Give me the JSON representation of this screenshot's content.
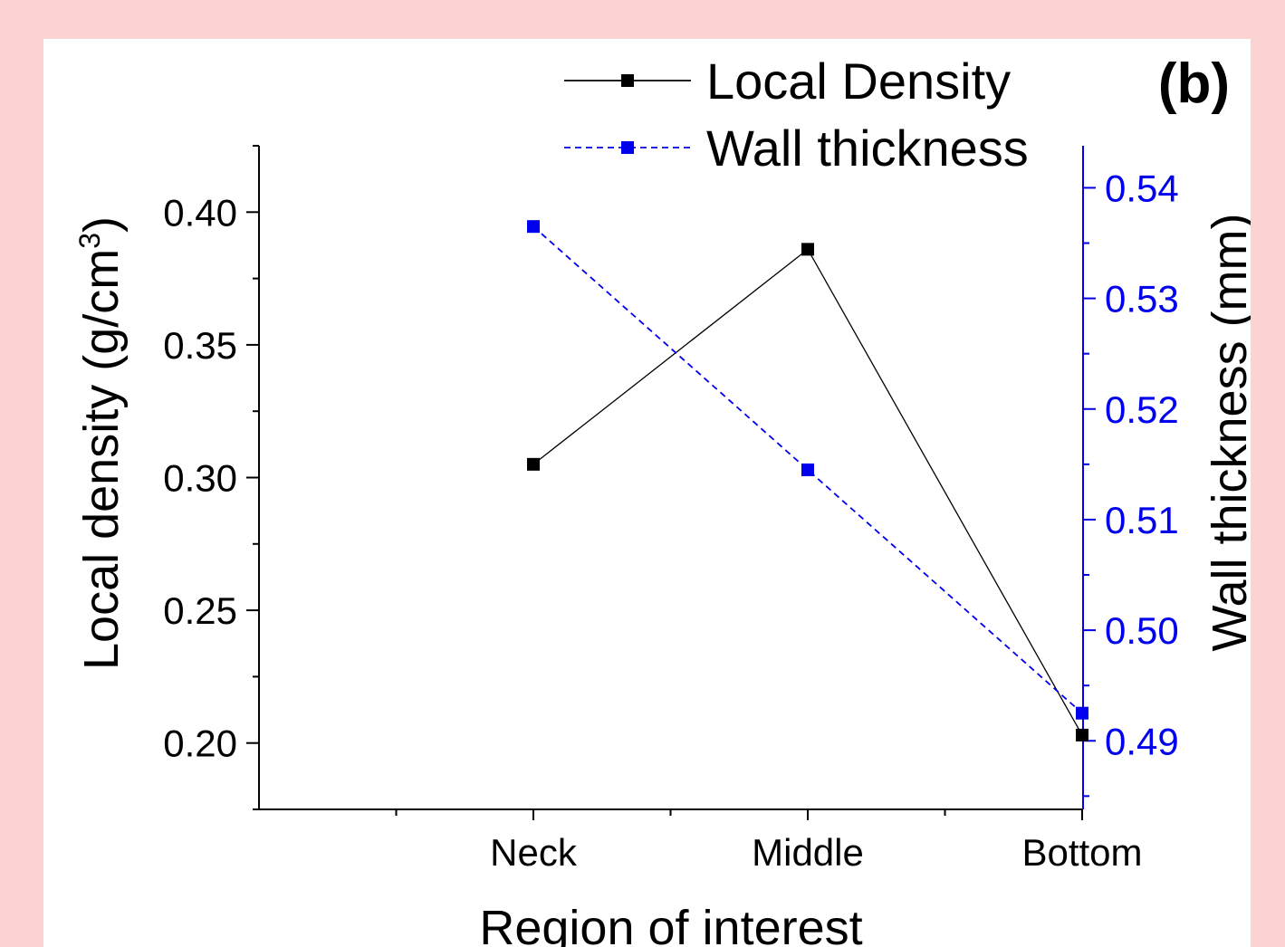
{
  "chart_data": {
    "type": "line",
    "panel_label": "(b)",
    "categories": [
      "Neck",
      "Middle",
      "Bottom"
    ],
    "xlabel": "Region of interest",
    "ylabel": "Local density (g/cm",
    "ylabel_sup": "3",
    "ylabel_close": ")",
    "y2label": "Wall thickness (mm)",
    "ylim": [
      0.175,
      0.425
    ],
    "y2lim": [
      0.4838,
      0.5438
    ],
    "yticks": [
      "0.20",
      "0.25",
      "0.30",
      "0.35",
      "0.40"
    ],
    "y2ticks": [
      "0.49",
      "0.50",
      "0.51",
      "0.52",
      "0.53",
      "0.54"
    ],
    "grid": false,
    "legend_position": "top",
    "series": [
      {
        "name": "Local Density",
        "axis": "left",
        "values": [
          0.305,
          0.386,
          0.203
        ],
        "color": "#000000",
        "line_style": "solid",
        "marker": "square"
      },
      {
        "name": "Wall thickness",
        "axis": "right",
        "values": [
          0.5365,
          0.5145,
          0.4925
        ],
        "color": "#0000ee",
        "line_style": "dashed",
        "marker": "square"
      }
    ]
  }
}
